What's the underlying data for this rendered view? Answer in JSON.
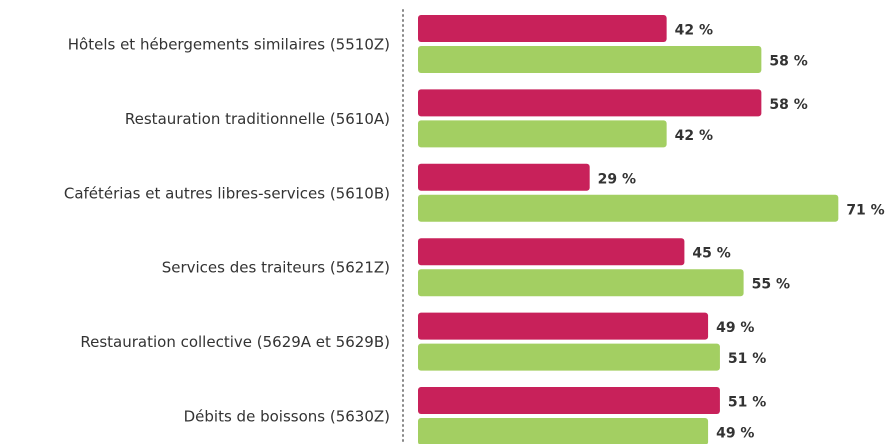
{
  "chart_data": {
    "type": "bar",
    "orientation": "horizontal",
    "categories": [
      "Hôtels et hébergements similaires (5510Z)",
      "Restauration traditionnelle (5610A)",
      "Cafétérias et autres libres-services (5610B)",
      "Services des traiteurs (5621Z)",
      "Restauration collective (5629A et 5629B)",
      "Débits de boissons (5630Z)"
    ],
    "series": [
      {
        "color": "#c8215a",
        "values": [
          42,
          58,
          29,
          45,
          49,
          51
        ],
        "value_labels": [
          "42 %",
          "58 %",
          "29 %",
          "45 %",
          "49 %",
          "51 %"
        ]
      },
      {
        "color": "#a3cf62",
        "values": [
          58,
          42,
          71,
          55,
          51,
          49
        ],
        "value_labels": [
          "58 %",
          "42 %",
          "71 %",
          "55 %",
          "51 %",
          "49 %"
        ]
      }
    ],
    "xlim": [
      0,
      75
    ]
  }
}
